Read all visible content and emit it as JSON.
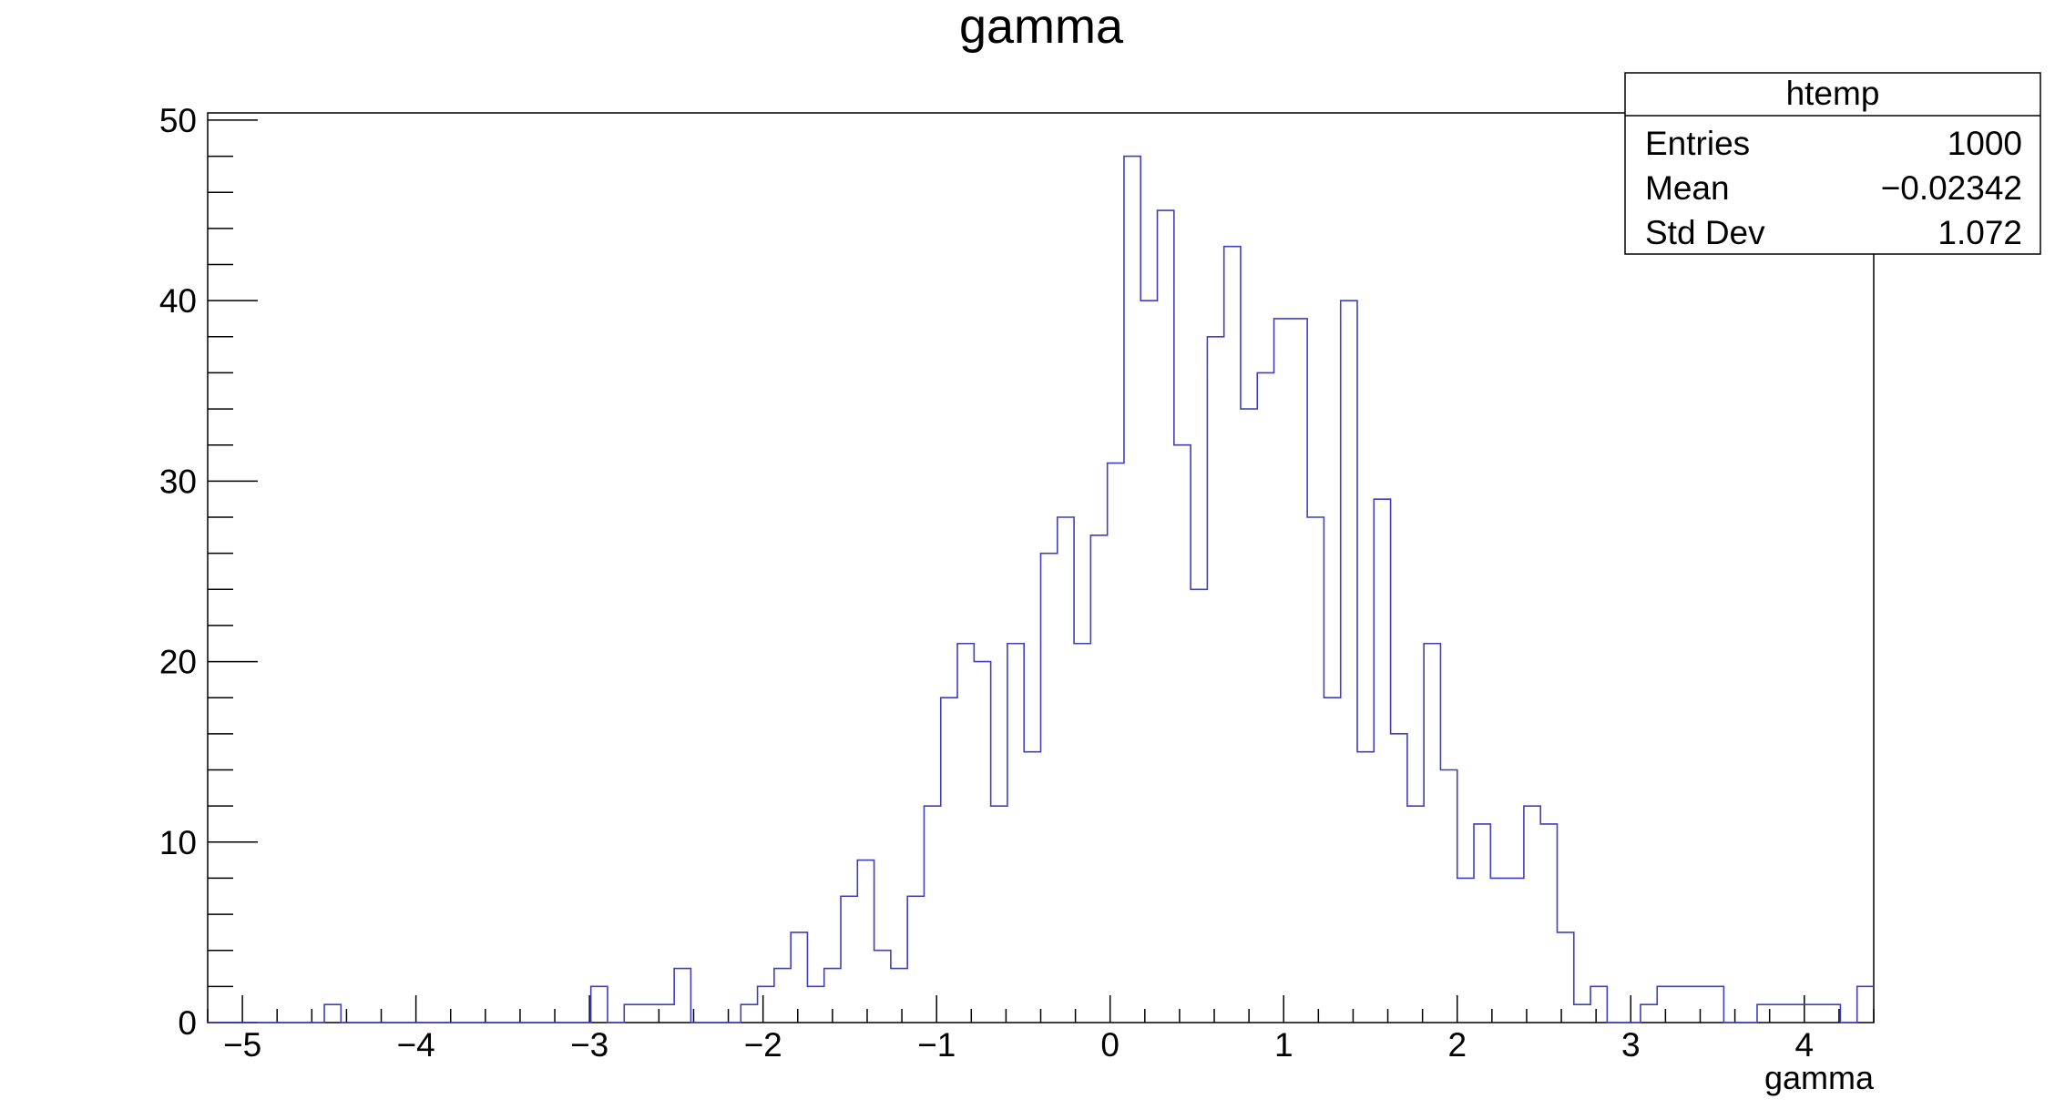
{
  "chart_data": {
    "type": "histogram",
    "title": "gamma",
    "xlabel": "gamma",
    "ylabel": "",
    "xlim": [
      -5.2,
      4.4
    ],
    "ylim": [
      0,
      50.4
    ],
    "x_ticks": [
      -5,
      -4,
      -3,
      -2,
      -1,
      0,
      1,
      2,
      3,
      4
    ],
    "x_tick_labels": [
      "−5",
      "−4",
      "−3",
      "−2",
      "−1",
      "0",
      "1",
      "2",
      "3",
      "4"
    ],
    "y_ticks": [
      0,
      10,
      20,
      30,
      40,
      50
    ],
    "y_tick_labels": [
      "0",
      "10",
      "20",
      "30",
      "40",
      "50"
    ],
    "line_color": "#3f3fbf",
    "bin_start": -5.2,
    "bin_width": 0.096,
    "counts": [
      0,
      0,
      0,
      0,
      0,
      0,
      0,
      1,
      0,
      0,
      0,
      0,
      0,
      0,
      0,
      0,
      0,
      0,
      0,
      0,
      0,
      0,
      0,
      2,
      0,
      1,
      1,
      1,
      3,
      0,
      0,
      0,
      1,
      2,
      3,
      5,
      2,
      3,
      7,
      9,
      4,
      3,
      7,
      12,
      18,
      21,
      20,
      12,
      21,
      15,
      26,
      28,
      21,
      27,
      31,
      48,
      40,
      45,
      32,
      24,
      38,
      43,
      34,
      36,
      39,
      39,
      28,
      18,
      40,
      15,
      29,
      16,
      12,
      21,
      14,
      8,
      11,
      8,
      8,
      12,
      11,
      5,
      1,
      2,
      0,
      0,
      1,
      2,
      2,
      2,
      2,
      0,
      0,
      1,
      1,
      1,
      1,
      1,
      0,
      2
    ],
    "stats_box": {
      "title": "htemp",
      "rows": [
        {
          "label": "Entries",
          "value": "1000"
        },
        {
          "label": "Mean",
          "value": "−0.02342"
        },
        {
          "label": "Std Dev",
          "value": "1.072"
        }
      ]
    }
  }
}
